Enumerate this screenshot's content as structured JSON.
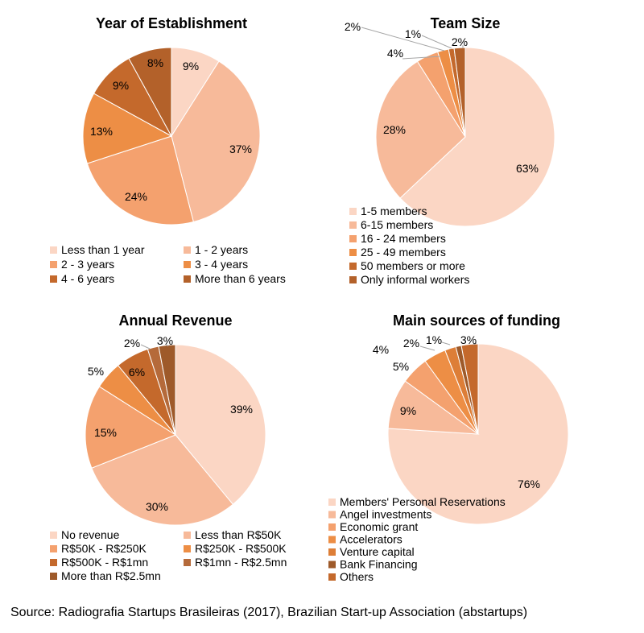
{
  "palette": [
    "#FBD6C4",
    "#F7BA9A",
    "#F4A16E",
    "#ED8E45",
    "#DD7E37",
    "#C4692C",
    "#B3612A"
  ],
  "source": "Source: Radiografia Startups Brasileiras (2017), Brazilian Start-up Association (abstartups)",
  "chart_data": [
    {
      "type": "pie",
      "title": "Year of Establishment",
      "categories": [
        "Less than 1 year",
        "1 - 2 years",
        "2 - 3 years",
        "3 - 4 years",
        "4 - 6 years",
        "More than 6 years"
      ],
      "values": [
        9,
        37,
        24,
        13,
        9,
        8
      ],
      "labels": [
        "9%",
        "37%",
        "24%",
        "13%",
        "9%",
        "8%"
      ],
      "colors": [
        "#FBD6C4",
        "#F7BA9A",
        "#F4A16E",
        "#ED8E45",
        "#C4692C",
        "#B3612A"
      ],
      "legend": "bottom, two columns"
    },
    {
      "type": "pie",
      "title": "Team Size",
      "categories": [
        "1-5 members",
        "6-15 members",
        "16 - 24 members",
        "25 - 49 members",
        "50 members or more",
        "Only informal workers"
      ],
      "values": [
        63,
        28,
        4,
        2,
        1,
        2
      ],
      "labels": [
        "63%",
        "28%",
        "4%",
        "2%",
        "1%",
        "2%"
      ],
      "colors": [
        "#FBD6C4",
        "#F7BA9A",
        "#F4A16E",
        "#ED8E45",
        "#C4692C",
        "#B3612A"
      ],
      "legend": "bottom, one column"
    },
    {
      "type": "pie",
      "title": "Annual Revenue",
      "categories": [
        "No revenue",
        "Less than R$50K",
        "R$50K - R$250K",
        "R$250K - R$500K",
        "R$500K - R$1mn",
        "R$1mn - R$2.5mn",
        "More than R$2.5mn"
      ],
      "values": [
        39,
        30,
        15,
        5,
        6,
        2,
        3
      ],
      "labels": [
        "39%",
        "30%",
        "15%",
        "5%",
        "6%",
        "2%",
        "3%"
      ],
      "colors": [
        "#FBD6C4",
        "#F7BA9A",
        "#F4A16E",
        "#ED8E45",
        "#C4692C",
        "#B56A3A",
        "#9E5A2A"
      ],
      "legend": "bottom, two columns"
    },
    {
      "type": "pie",
      "title": "Main sources of funding",
      "categories": [
        "Members' Personal Reservations",
        "Angel investments",
        "Economic grant",
        "Accelerators",
        "Venture capital",
        "Bank Financing",
        "Others"
      ],
      "values": [
        76,
        9,
        5,
        4,
        2,
        1,
        3
      ],
      "labels": [
        "76%",
        "9%",
        "5%",
        "4%",
        "2%",
        "1%",
        "3%"
      ],
      "colors": [
        "#FBD6C4",
        "#F7BA9A",
        "#F4A16E",
        "#ED8E45",
        "#DD7E37",
        "#9E5A2A",
        "#C4692C"
      ],
      "legend": "bottom, one column"
    }
  ]
}
